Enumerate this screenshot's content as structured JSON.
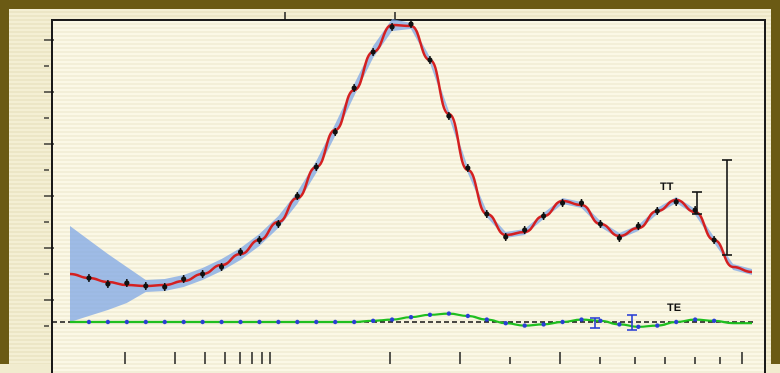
{
  "chart_data": {
    "type": "line",
    "xscale": "log",
    "grid": false,
    "series": [
      {
        "name": "TT",
        "color": "#d42020",
        "band_color": "#7fa7e6",
        "values_curve": [
          48,
          44,
          40,
          37,
          36,
          37,
          41,
          48,
          57,
          68,
          82,
          100,
          124,
          155,
          192,
          232,
          270,
          297,
          296,
          262,
          208,
          152,
          108,
          87,
          90,
          106,
          121,
          117,
          98,
          86,
          94,
          111,
          122,
          110,
          82,
          55,
          50
        ]
      },
      {
        "name": "TE",
        "color": "#1fbf1f",
        "values_curve": [
          0,
          0,
          0,
          0,
          0,
          0,
          0,
          0,
          0,
          0,
          0,
          0,
          0,
          0,
          0,
          0,
          1,
          2,
          4,
          6,
          7,
          5,
          2,
          -1,
          -3,
          -2,
          0,
          2,
          1,
          -2,
          -4,
          -3,
          0,
          2,
          1,
          -1,
          -1
        ]
      }
    ],
    "reference_line": {
      "style": "dashed",
      "color": "#111111"
    }
  }
}
